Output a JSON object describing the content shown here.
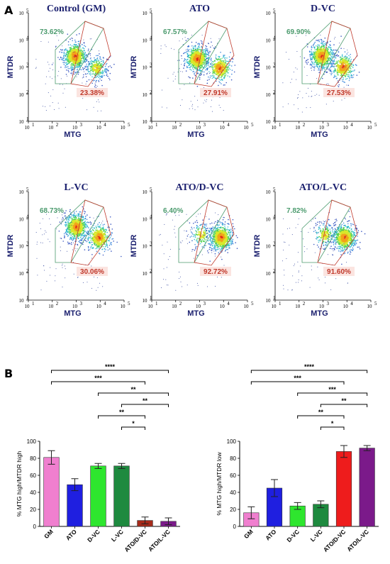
{
  "panel_labels": {
    "a": "A",
    "b": "B"
  },
  "chart_data": [
    {
      "type": "scatter",
      "subtype": "flow-cytometry",
      "title": "Control (GM)",
      "xlabel": "MTG",
      "ylabel": "MTDR",
      "xscale": "log",
      "yscale": "log",
      "xticks": [
        "10",
        "10",
        "10",
        "10",
        "10"
      ],
      "xtick_exponents": [
        "1",
        "2",
        "3",
        "4",
        "5"
      ],
      "yticks": [
        "10",
        "10",
        "10",
        "10",
        "10"
      ],
      "ytick_exponents": [
        "1",
        "2",
        "3",
        "4",
        "5"
      ],
      "gates": [
        {
          "label": "73.62%",
          "color": "#4c9b6e"
        },
        {
          "label": "23.38%",
          "color": "#c0392b"
        }
      ],
      "populations": [
        {
          "x": 900,
          "y": 2500,
          "weight": 1.0
        },
        {
          "x": 7000,
          "y": 900,
          "weight": 0.45
        }
      ]
    },
    {
      "type": "scatter",
      "subtype": "flow-cytometry",
      "title": "ATO",
      "xlabel": "MTG",
      "ylabel": "MTDR",
      "xscale": "log",
      "yscale": "log",
      "xticks": [
        "10",
        "10",
        "10",
        "10",
        "10"
      ],
      "xtick_exponents": [
        "1",
        "2",
        "3",
        "4",
        "5"
      ],
      "yticks": [
        "10",
        "10",
        "10",
        "10",
        "10"
      ],
      "ytick_exponents": [
        "1",
        "2",
        "3",
        "4",
        "5"
      ],
      "gates": [
        {
          "label": "67.57%",
          "color": "#4c9b6e"
        },
        {
          "label": "27.91%",
          "color": "#c0392b"
        }
      ],
      "populations": [
        {
          "x": 800,
          "y": 2000,
          "weight": 1.0
        },
        {
          "x": 7000,
          "y": 900,
          "weight": 0.5
        }
      ]
    },
    {
      "type": "scatter",
      "subtype": "flow-cytometry",
      "title": "D-VC",
      "xlabel": "MTG",
      "ylabel": "MTDR",
      "xscale": "log",
      "yscale": "log",
      "xticks": [
        "10",
        "10",
        "10",
        "10",
        "10"
      ],
      "xtick_exponents": [
        "1",
        "2",
        "3",
        "4",
        "5"
      ],
      "yticks": [
        "10",
        "10",
        "10",
        "10",
        "10"
      ],
      "ytick_exponents": [
        "1",
        "2",
        "3",
        "4",
        "5"
      ],
      "gates": [
        {
          "label": "69.90%",
          "color": "#4c9b6e"
        },
        {
          "label": "27.53%",
          "color": "#c0392b"
        }
      ],
      "populations": [
        {
          "x": 900,
          "y": 2600,
          "weight": 1.0
        },
        {
          "x": 7000,
          "y": 1000,
          "weight": 0.5
        }
      ]
    },
    {
      "type": "scatter",
      "subtype": "flow-cytometry",
      "title": "L-VC",
      "xlabel": "MTG",
      "ylabel": "MTDR",
      "xscale": "log",
      "yscale": "log",
      "xticks": [
        "10",
        "10",
        "10",
        "10",
        "10"
      ],
      "xtick_exponents": [
        "1",
        "2",
        "3",
        "4",
        "5"
      ],
      "yticks": [
        "10",
        "10",
        "10",
        "10",
        "10"
      ],
      "ytick_exponents": [
        "1",
        "2",
        "3",
        "4",
        "5"
      ],
      "gates": [
        {
          "label": "68.73%",
          "color": "#4c9b6e"
        },
        {
          "label": "30.06%",
          "color": "#c0392b"
        }
      ],
      "populations": [
        {
          "x": 1000,
          "y": 5000,
          "weight": 1.0
        },
        {
          "x": 9000,
          "y": 2000,
          "weight": 0.6
        }
      ]
    },
    {
      "type": "scatter",
      "subtype": "flow-cytometry",
      "title": "ATO/D-VC",
      "xlabel": "MTG",
      "ylabel": "MTDR",
      "xscale": "log",
      "yscale": "log",
      "xticks": [
        "10",
        "10",
        "10",
        "10",
        "10"
      ],
      "xtick_exponents": [
        "1",
        "2",
        "3",
        "4",
        "5"
      ],
      "yticks": [
        "10",
        "10",
        "10",
        "10",
        "10"
      ],
      "ytick_exponents": [
        "1",
        "2",
        "3",
        "4",
        "5"
      ],
      "gates": [
        {
          "label": "6.40%",
          "color": "#4c9b6e"
        },
        {
          "label": "92.72%",
          "color": "#c0392b"
        }
      ],
      "populations": [
        {
          "x": 1200,
          "y": 2500,
          "weight": 0.25
        },
        {
          "x": 8000,
          "y": 2000,
          "weight": 1.0
        }
      ]
    },
    {
      "type": "scatter",
      "subtype": "flow-cytometry",
      "title": "ATO/L-VC",
      "xlabel": "MTG",
      "ylabel": "MTDR",
      "xscale": "log",
      "yscale": "log",
      "xticks": [
        "10",
        "10",
        "10",
        "10",
        "10"
      ],
      "xtick_exponents": [
        "1",
        "2",
        "3",
        "4",
        "5"
      ],
      "yticks": [
        "10",
        "10",
        "10",
        "10",
        "10"
      ],
      "ytick_exponents": [
        "1",
        "2",
        "3",
        "4",
        "5"
      ],
      "gates": [
        {
          "label": "7.82%",
          "color": "#4c9b6e"
        },
        {
          "label": "91.60%",
          "color": "#c0392b"
        }
      ],
      "populations": [
        {
          "x": 1200,
          "y": 2500,
          "weight": 0.3
        },
        {
          "x": 8000,
          "y": 2000,
          "weight": 1.0
        }
      ]
    },
    {
      "type": "bar",
      "title": "",
      "xlabel": "",
      "ylabel": "% MTG high/MTDR high",
      "ylim": [
        0,
        100
      ],
      "yticks": [
        "0",
        "20",
        "40",
        "60",
        "80",
        "100"
      ],
      "categories": [
        "GM",
        "ATO",
        "D-VC",
        "L-VC",
        "ATO/D-VC",
        "ATO/L-VC"
      ],
      "values": [
        81,
        49,
        71,
        71,
        7,
        6
      ],
      "errors": [
        8,
        7,
        3,
        3,
        4,
        4
      ],
      "colors": [
        "#f07fcf",
        "#1f1fe0",
        "#2ee62e",
        "#1e8a3f",
        "#a52a1a",
        "#7b1a8a"
      ],
      "significance": [
        {
          "from": 0,
          "to": 5,
          "label": "****"
        },
        {
          "from": 0,
          "to": 4,
          "label": "***"
        },
        {
          "from": 2,
          "to": 5,
          "label": "**"
        },
        {
          "from": 3,
          "to": 5,
          "label": "**"
        },
        {
          "from": 2,
          "to": 4,
          "label": "**"
        },
        {
          "from": 3,
          "to": 4,
          "label": "*"
        }
      ]
    },
    {
      "type": "bar",
      "title": "",
      "xlabel": "",
      "ylabel": "% MTG high/MTDR low",
      "ylim": [
        0,
        100
      ],
      "yticks": [
        "0",
        "20",
        "40",
        "60",
        "80",
        "100"
      ],
      "categories": [
        "GM",
        "ATO",
        "D-VC",
        "L-VC",
        "ATO/D-VC",
        "ATO/L-VC"
      ],
      "values": [
        16,
        45,
        24,
        26,
        88,
        92
      ],
      "errors": [
        7,
        10,
        4,
        4,
        7,
        3
      ],
      "colors": [
        "#f07fcf",
        "#1f1fe0",
        "#2ee62e",
        "#1e8a3f",
        "#ee1c1c",
        "#7b1a8a"
      ],
      "significance": [
        {
          "from": 0,
          "to": 5,
          "label": "****"
        },
        {
          "from": 0,
          "to": 4,
          "label": "***"
        },
        {
          "from": 2,
          "to": 5,
          "label": "***"
        },
        {
          "from": 3,
          "to": 5,
          "label": "**"
        },
        {
          "from": 2,
          "to": 4,
          "label": "**"
        },
        {
          "from": 3,
          "to": 4,
          "label": "*"
        }
      ]
    }
  ]
}
